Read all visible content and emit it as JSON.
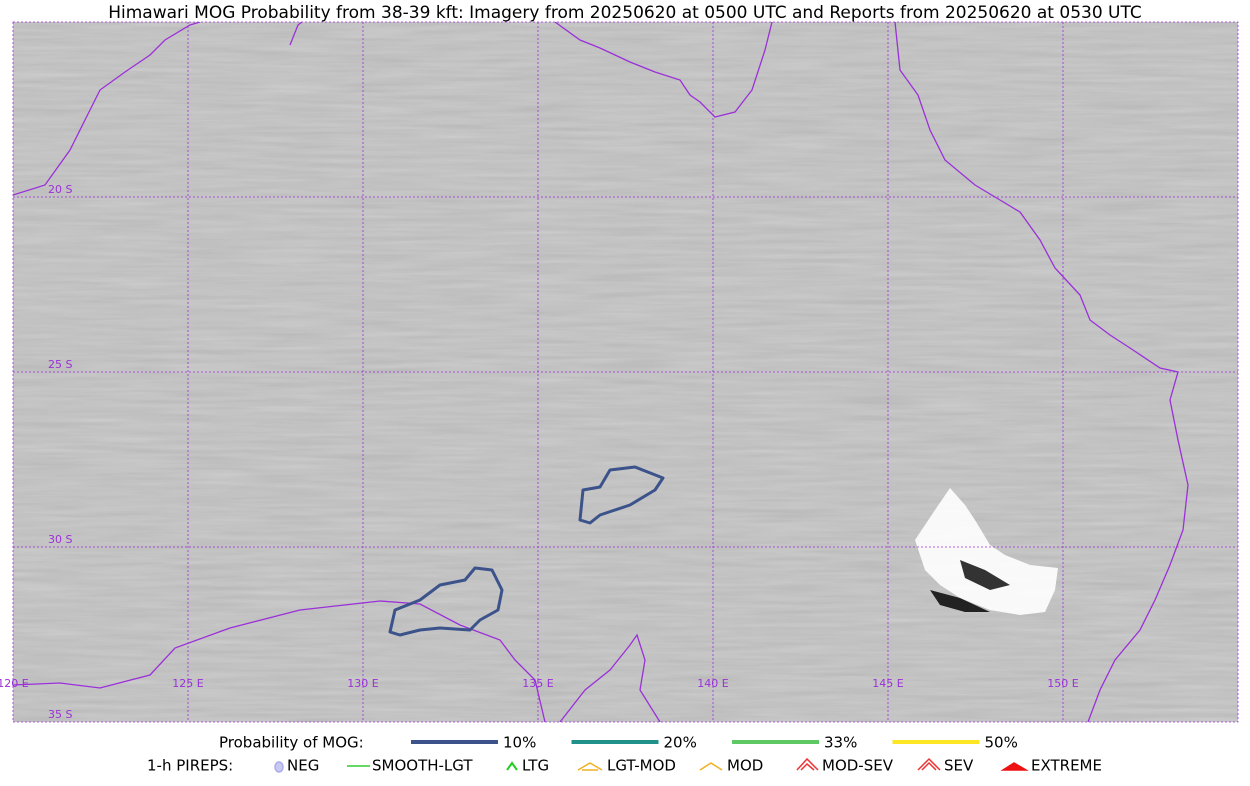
{
  "title": "Himawari MOG Probability from 38-39 kft: Imagery from 20250620 at 0500 UTC and Reports from 20250620 at 0530 UTC",
  "grid_labels": {
    "lat": [
      "20 S",
      "25 S",
      "30 S",
      "35 S"
    ],
    "lon": [
      "120 E",
      "125 E",
      "130 E",
      "135 E",
      "140 E",
      "145 E",
      "150 E"
    ]
  },
  "legend": {
    "probability": {
      "label": "Probability of MOG:",
      "items": [
        {
          "label": "10%",
          "color": "#3b528b"
        },
        {
          "label": "20%",
          "color": "#21918c"
        },
        {
          "label": "33%",
          "color": "#5ec962"
        },
        {
          "label": "50%",
          "color": "#fde725"
        }
      ]
    },
    "pireps": {
      "label": "1-h PIREPS:",
      "items": [
        "NEG",
        "SMOOTH-LGT",
        "LTG",
        "LGT-MOD",
        "MOD",
        "MOD-SEV",
        "SEV",
        "EXTREME"
      ]
    }
  }
}
